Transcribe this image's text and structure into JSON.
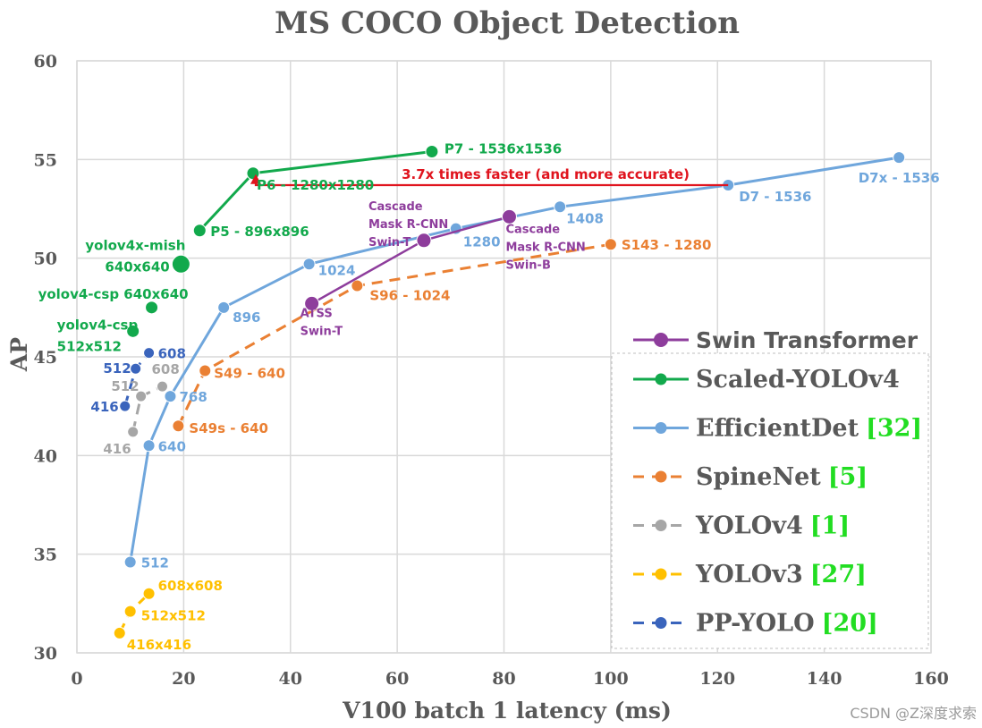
{
  "watermark": "CSDN @Z深度求索",
  "chart_data": {
    "type": "line",
    "title": "MS COCO Object Detection",
    "xlabel": "V100 batch 1 latency (ms)",
    "ylabel": "AP",
    "xlim": [
      0,
      160
    ],
    "ylim": [
      30,
      60
    ],
    "xticks": [
      0,
      20,
      40,
      60,
      80,
      100,
      120,
      140,
      160
    ],
    "yticks": [
      30,
      35,
      40,
      45,
      50,
      55,
      60
    ],
    "grid": true,
    "legend_position": "bottom-right",
    "series": [
      {
        "key": "swin",
        "name": "Swin Transformer",
        "ref": "",
        "color": "#8e3d9c",
        "dash": false,
        "points": [
          {
            "x": 44,
            "y": 47.7,
            "label": "ATSS Swin-T"
          },
          {
            "x": 65,
            "y": 50.9,
            "label": "Cascade Mask R-CNN Swin-T"
          },
          {
            "x": 81,
            "y": 52.1,
            "label": "Cascade Mask R-CNN Swin-B"
          }
        ]
      },
      {
        "key": "scaled",
        "name": "Scaled-YOLOv4",
        "ref": "",
        "color": "#12a94c",
        "dash": false,
        "points": [
          {
            "x": 23,
            "y": 51.4,
            "label": "P5 - 896x896"
          },
          {
            "x": 33,
            "y": 54.3,
            "label": "P6 - 1280x1280"
          },
          {
            "x": 66.5,
            "y": 55.4,
            "label": "P7 - 1536x1536"
          }
        ]
      },
      {
        "key": "effdet",
        "name": "EfficientDet",
        "ref": "[32]",
        "color": "#6fa6dc",
        "dash": false,
        "points": [
          {
            "x": 10,
            "y": 34.6,
            "label": "512"
          },
          {
            "x": 13.5,
            "y": 40.5,
            "label": "640"
          },
          {
            "x": 17.5,
            "y": 43.0,
            "label": "768"
          },
          {
            "x": 27.5,
            "y": 47.5,
            "label": "896"
          },
          {
            "x": 43.5,
            "y": 49.7,
            "label": "1024"
          },
          {
            "x": 71,
            "y": 51.5,
            "label": "1280"
          },
          {
            "x": 90.5,
            "y": 52.6,
            "label": "1408"
          },
          {
            "x": 122,
            "y": 53.7,
            "label": "D7 - 1536"
          },
          {
            "x": 154,
            "y": 55.1,
            "label": "D7x - 1536"
          }
        ]
      },
      {
        "key": "spinenet",
        "name": "SpineNet",
        "ref": "[5]",
        "color": "#ea8033",
        "dash": true,
        "points": [
          {
            "x": 19,
            "y": 41.5,
            "label": "S49s - 640"
          },
          {
            "x": 24,
            "y": 44.3,
            "label": "S49 - 640"
          },
          {
            "x": 52.5,
            "y": 48.6,
            "label": "S96 - 1024"
          },
          {
            "x": 100,
            "y": 50.7,
            "label": "S143 - 1280"
          }
        ]
      },
      {
        "key": "yolov4",
        "name": "YOLOv4",
        "ref": "[1]",
        "color": "#a6a6a6",
        "dash": true,
        "points": [
          {
            "x": 10.5,
            "y": 41.2,
            "label": "416"
          },
          {
            "x": 12,
            "y": 43.0,
            "label": "512"
          },
          {
            "x": 16,
            "y": 43.5,
            "label": "608"
          }
        ]
      },
      {
        "key": "yolov3",
        "name": "YOLOv3",
        "ref": "[27]",
        "color": "#ffc000",
        "dash": true,
        "points": [
          {
            "x": 8,
            "y": 31.0,
            "label": "416x416"
          },
          {
            "x": 10,
            "y": 32.1,
            "label": "512x512"
          },
          {
            "x": 13.5,
            "y": 33.0,
            "label": "608x608"
          }
        ]
      },
      {
        "key": "ppyolo",
        "name": "PP-YOLO",
        "ref": "[20]",
        "color": "#3a64bc",
        "dash": true,
        "points": [
          {
            "x": 9,
            "y": 42.5,
            "label": "416"
          },
          {
            "x": 11,
            "y": 44.4,
            "label": "512"
          },
          {
            "x": 13.5,
            "y": 45.2,
            "label": "608"
          }
        ]
      }
    ],
    "extra_points": [
      {
        "x": 10.5,
        "y": 46.3,
        "label": "yolov4-csp 512x512",
        "color": "#12a94c"
      },
      {
        "x": 14,
        "y": 47.5,
        "label": "yolov4-csp 640x640",
        "color": "#12a94c"
      },
      {
        "x": 19.5,
        "y": 49.7,
        "label": "yolov4x-mish 640x640",
        "color": "#12a94c"
      }
    ],
    "annotation": {
      "text": "3.7x times faster (and more accurate)",
      "color": "#e0141e",
      "from": {
        "x": 122,
        "y": 53.7
      },
      "to": {
        "x": 33,
        "y": 54.3
      }
    }
  }
}
